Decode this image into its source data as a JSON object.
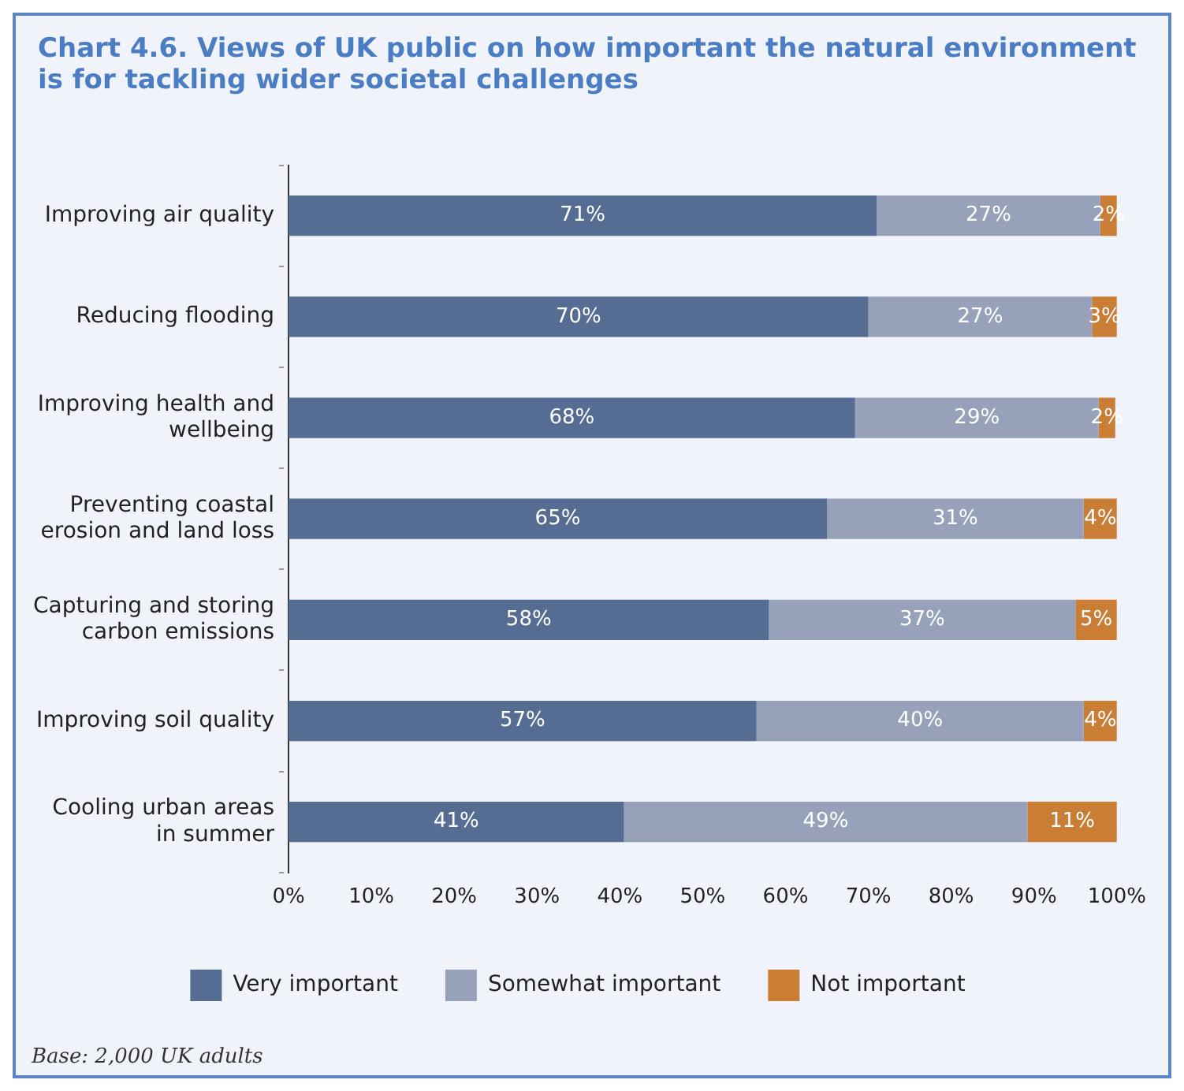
{
  "chart_data": {
    "type": "bar",
    "orientation": "horizontal",
    "stacked": true,
    "title": "Chart 4.6. Views of UK public on how important the natural environment is for tackling wider societal challenges",
    "categories": [
      "Improving air quality",
      "Reducing flooding",
      "Improving health and wellbeing",
      "Preventing coastal erosion and land loss",
      "Capturing and storing carbon emissions",
      "Improving soil quality",
      "Cooling urban areas in summer"
    ],
    "series": [
      {
        "name": "Very important",
        "color": "#566d93",
        "values": [
          71,
          70,
          68.4,
          65,
          58,
          56.5,
          40.5
        ],
        "value_labels": [
          "71%",
          "70%",
          "68%",
          "65%",
          "58%",
          "57%",
          "41%"
        ]
      },
      {
        "name": "Somewhat important",
        "color": "#97a1ba",
        "values": [
          27,
          27,
          29.4,
          31,
          37,
          39.5,
          48.7
        ],
        "value_labels": [
          "27%",
          "27%",
          "29%",
          "31%",
          "37%",
          "40%",
          "49%"
        ]
      },
      {
        "name": "Not important",
        "color": "#c97d35",
        "values": [
          2,
          3,
          2,
          4,
          5,
          4,
          10.8
        ],
        "value_labels": [
          "2%",
          "3%",
          "2%",
          "4%",
          "5%",
          "4%",
          "11%"
        ]
      }
    ],
    "xlim": [
      0,
      100
    ],
    "xticks": [
      {
        "value": 0,
        "label": "0%"
      },
      {
        "value": 10,
        "label": "10%"
      },
      {
        "value": 20,
        "label": "20%"
      },
      {
        "value": 30,
        "label": "30%"
      },
      {
        "value": 40,
        "label": "40%"
      },
      {
        "value": 50,
        "label": "50%"
      },
      {
        "value": 60,
        "label": "60%"
      },
      {
        "value": 70,
        "label": "70%"
      },
      {
        "value": 80,
        "label": "80%"
      },
      {
        "value": 90,
        "label": "90%"
      },
      {
        "value": 100,
        "label": "100%"
      }
    ],
    "grid": false,
    "legend": "bottom",
    "annotations": [
      "Base: 2,000 UK adults"
    ]
  }
}
